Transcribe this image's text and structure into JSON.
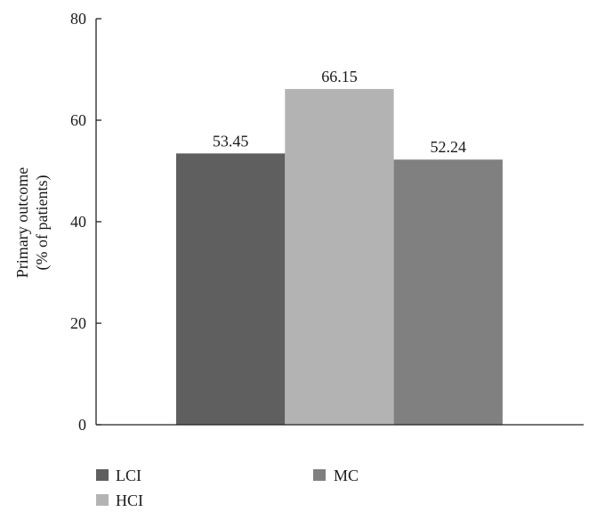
{
  "chart_data": {
    "type": "bar",
    "categories": [
      "LCI",
      "HCI",
      "MC"
    ],
    "values": [
      53.45,
      66.15,
      52.24
    ],
    "data_labels": [
      "53.45",
      "66.15",
      "52.24"
    ],
    "colors": [
      "#5f5f5f",
      "#b3b3b3",
      "#808080"
    ],
    "ylabel_lines": [
      "Primary outcome",
      "(% of patients)"
    ],
    "ylim": [
      0,
      80
    ],
    "yticks": [
      0,
      20,
      40,
      60,
      80
    ],
    "grid": false,
    "legend": {
      "placement": "bottom",
      "entries": [
        "LCI",
        "MC",
        "HCI"
      ],
      "colors": [
        "#5f5f5f",
        "#808080",
        "#b3b3b3"
      ]
    }
  }
}
